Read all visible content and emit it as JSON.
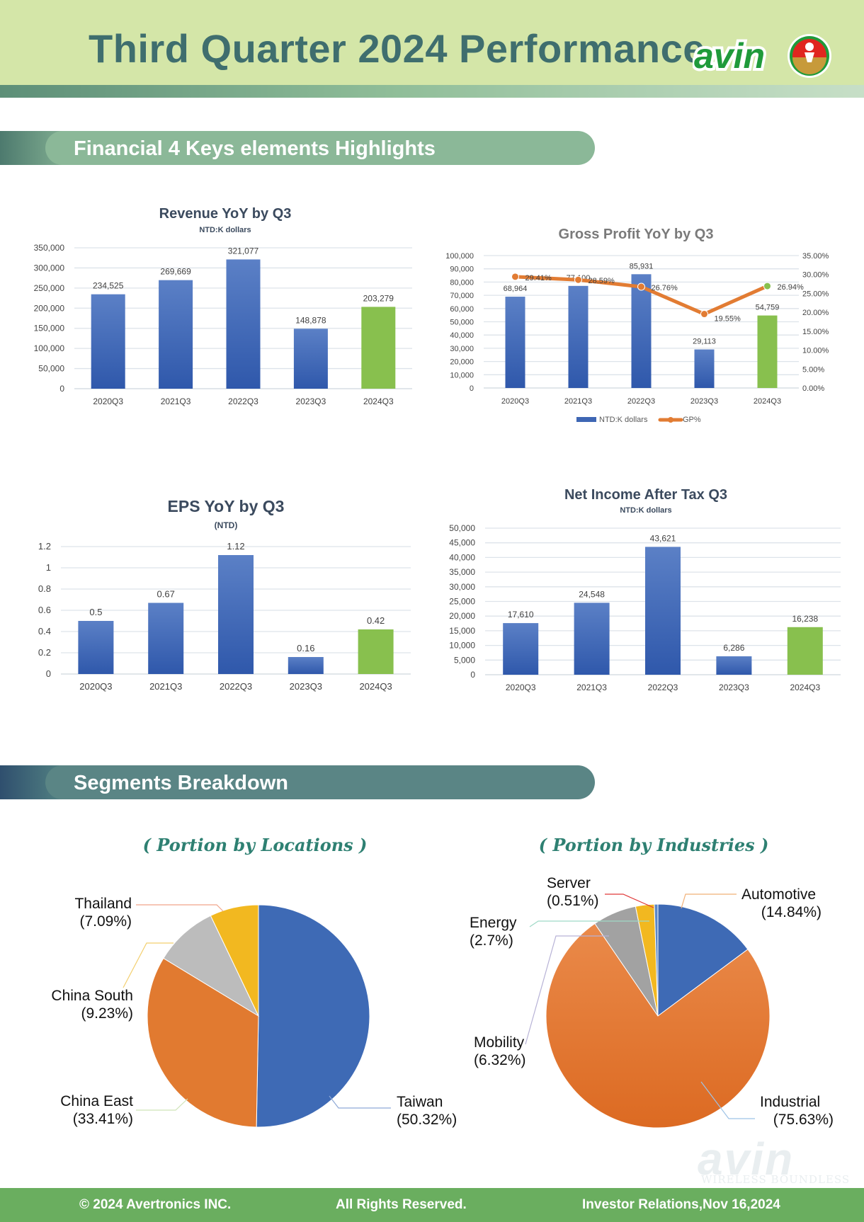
{
  "header": {
    "title": "Third Quarter 2024 Performance",
    "logo_text": "avin"
  },
  "sections": {
    "financial": "Financial 4 Keys elements Highlights",
    "segments": "Segments Breakdown"
  },
  "colors": {
    "blue": "#3e66b4",
    "green": "#88c04e",
    "orange": "#e27c33",
    "teal_title": "#2e8072"
  },
  "chart_data": [
    {
      "type": "bar",
      "title": "Revenue YoY by Q3",
      "subtitle": "NTD:K dollars",
      "categories": [
        "2020Q3",
        "2021Q3",
        "2022Q3",
        "2023Q3",
        "2024Q3"
      ],
      "values": [
        234525,
        269669,
        321077,
        148878,
        203279
      ],
      "labels": [
        "234,525",
        "269,669",
        "321,077",
        "148,878",
        "203,279"
      ],
      "ylim": [
        0,
        350000
      ],
      "yticks": [
        "0",
        "50,000",
        "100,000",
        "150,000",
        "200,000",
        "250,000",
        "300,000",
        "350,000"
      ],
      "highlight_last": true
    },
    {
      "type": "bar",
      "title": "Gross Profit YoY by Q3",
      "categories": [
        "2020Q3",
        "2021Q3",
        "2022Q3",
        "2023Q3",
        "2024Q3"
      ],
      "series": [
        {
          "name": "NTD:K dollars",
          "values": [
            68964,
            77100,
            85931,
            29113,
            54759
          ],
          "labels": [
            "68,964",
            "77,100",
            "85,931",
            "29,113",
            "54,759"
          ]
        },
        {
          "name": "GP%",
          "type": "line",
          "values": [
            29.41,
            28.59,
            26.76,
            19.55,
            26.94
          ],
          "labels": [
            "29.41%",
            "28.59%",
            "26.76%",
            "19.55%",
            "26.94%"
          ]
        }
      ],
      "ylim": [
        0,
        100000
      ],
      "y2lim": [
        0,
        35
      ],
      "yticks": [
        "0",
        "10,000",
        "20,000",
        "30,000",
        "40,000",
        "50,000",
        "60,000",
        "70,000",
        "80,000",
        "90,000",
        "100,000"
      ],
      "y2ticks": [
        "0.00%",
        "5.00%",
        "10.00%",
        "15.00%",
        "20.00%",
        "25.00%",
        "30.00%",
        "35.00%"
      ],
      "legend": "bottom",
      "highlight_last": true
    },
    {
      "type": "bar",
      "title": "EPS YoY by Q3",
      "subtitle": "(NTD)",
      "categories": [
        "2020Q3",
        "2021Q3",
        "2022Q3",
        "2023Q3",
        "2024Q3"
      ],
      "values": [
        0.5,
        0.67,
        1.12,
        0.16,
        0.42
      ],
      "labels": [
        "0.5",
        "0.67",
        "1.12",
        "0.16",
        "0.42"
      ],
      "ylim": [
        0,
        1.2
      ],
      "yticks": [
        "0",
        "0.2",
        "0.4",
        "0.6",
        "0.8",
        "1",
        "1.2"
      ],
      "highlight_last": true
    },
    {
      "type": "bar",
      "title": "Net Income After Tax Q3",
      "subtitle": "NTD:K dollars",
      "categories": [
        "2020Q3",
        "2021Q3",
        "2022Q3",
        "2023Q3",
        "2024Q3"
      ],
      "values": [
        17610,
        24548,
        43621,
        6286,
        16238
      ],
      "labels": [
        "17,610",
        "24,548",
        "43,621",
        "6,286",
        "16,238"
      ],
      "ylim": [
        0,
        50000
      ],
      "yticks": [
        "0",
        "5,000",
        "10,000",
        "15,000",
        "20,000",
        "25,000",
        "30,000",
        "35,000",
        "40,000",
        "45,000",
        "50,000"
      ],
      "highlight_last": true
    },
    {
      "type": "pie",
      "title": "( Portion by Locations )",
      "slices": [
        {
          "name": "Taiwan",
          "value": 50.32,
          "label": "(50.32%)",
          "color": "#3e6ab5"
        },
        {
          "name": "China East",
          "value": 33.41,
          "label": "(33.41%)",
          "color": "#e17a30"
        },
        {
          "name": "China South",
          "value": 9.23,
          "label": "(9.23%)",
          "color": "#bcbcbc"
        },
        {
          "name": "Thailand",
          "value": 7.09,
          "label": "(7.09%)",
          "color": "#f2b820"
        }
      ]
    },
    {
      "type": "pie",
      "title": "( Portion by Industries )",
      "slices": [
        {
          "name": "Automotive",
          "value": 14.84,
          "label": "(14.84%)",
          "color": "#3e6ab5"
        },
        {
          "name": "Industrial",
          "value": 75.63,
          "label": "(75.63%)",
          "color": "#e27a33"
        },
        {
          "name": "Mobility",
          "value": 6.32,
          "label": "(6.32%)",
          "color": "#a2a2a2"
        },
        {
          "name": "Energy",
          "value": 2.7,
          "label": "(2.7%)",
          "color": "#f2b820"
        },
        {
          "name": "Server",
          "value": 0.51,
          "label": "(0.51%)",
          "color": "#5b87c7"
        }
      ]
    }
  ],
  "footer": {
    "copyright": "© 2024 Avertronics INC.",
    "rights": "All Rights Reserved.",
    "ir": "Investor Relations,Nov 16,2024"
  },
  "watermark": {
    "logo": "avin",
    "tagline": "WIRELESS BOUNDLESS"
  }
}
